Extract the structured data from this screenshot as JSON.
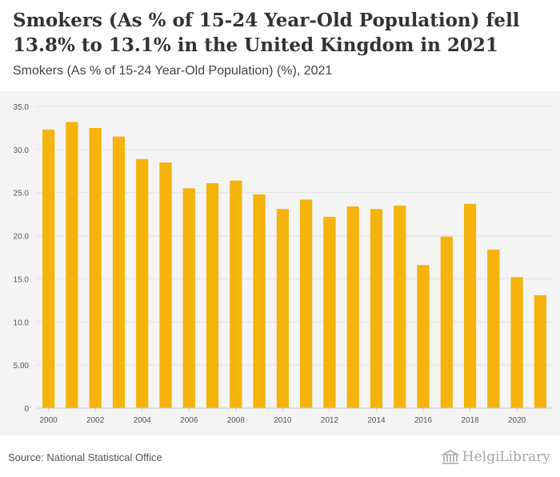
{
  "header": {
    "title": "Smokers (As % of 15-24 Year-Old Population) fell 13.8% to 13.1% in the United Kingdom in 2021",
    "subtitle": "Smokers (As % of 15-24 Year-Old Population) (%), 2021"
  },
  "footer": {
    "source": "Source: National Statistical Office",
    "logo_text": "HelgiLibrary"
  },
  "colors": {
    "bar": "#f5b30b",
    "grid": "#e2e2e2",
    "axis_text": "#555555",
    "chart_bg": "#f4f4f4"
  },
  "chart_data": {
    "type": "bar",
    "categories": [
      "2000",
      "2001",
      "2002",
      "2003",
      "2004",
      "2005",
      "2006",
      "2007",
      "2008",
      "2009",
      "2010",
      "2011",
      "2012",
      "2013",
      "2014",
      "2015",
      "2016",
      "2017",
      "2018",
      "2019",
      "2020",
      "2021"
    ],
    "values": [
      32.3,
      33.2,
      32.5,
      31.5,
      28.9,
      28.5,
      25.5,
      26.1,
      26.4,
      24.8,
      23.1,
      24.2,
      22.2,
      23.4,
      23.1,
      23.5,
      16.6,
      19.9,
      23.7,
      18.4,
      15.2,
      13.1
    ],
    "x_tick_labels": [
      "2000",
      "2002",
      "2004",
      "2006",
      "2008",
      "2010",
      "2012",
      "2014",
      "2016",
      "2018",
      "2020"
    ],
    "y_ticks": [
      0,
      5,
      10,
      15,
      20,
      25,
      30,
      35
    ],
    "y_tick_labels": [
      "0",
      "5.00",
      "10.0",
      "15.0",
      "20.0",
      "25.0",
      "30.0",
      "35.0"
    ],
    "ylim": [
      0,
      35
    ],
    "grid": true,
    "legend": "none"
  }
}
